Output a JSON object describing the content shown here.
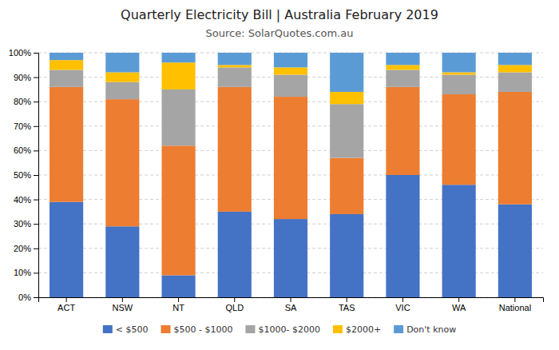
{
  "chart_data": {
    "type": "bar",
    "stacked": true,
    "title": "Quarterly Electricity Bill | Australia February 2019",
    "subtitle": "Source: SolarQuotes.com.au",
    "categories": [
      "ACT",
      "NSW",
      "NT",
      "QLD",
      "SA",
      "TAS",
      "VIC",
      "WA",
      "National"
    ],
    "series": [
      {
        "name": "< $500",
        "color": "#4472C4",
        "values": [
          39,
          29,
          9,
          35,
          32,
          34,
          50,
          46,
          38
        ]
      },
      {
        "name": "$500 - $1000",
        "color": "#ED7D31",
        "values": [
          47,
          52,
          53,
          51,
          50,
          23,
          36,
          37,
          46
        ]
      },
      {
        "name": "$1000- $2000",
        "color": "#A5A5A5",
        "values": [
          7,
          7,
          23,
          8,
          9,
          22,
          7,
          8,
          8
        ]
      },
      {
        "name": "$2000+",
        "color": "#FFC000",
        "values": [
          4,
          4,
          11,
          1,
          3,
          5,
          2,
          1,
          3
        ]
      },
      {
        "name": "Don't know",
        "color": "#5B9BD5",
        "values": [
          3,
          8,
          4,
          5,
          6,
          16,
          5,
          8,
          5
        ]
      }
    ],
    "ylim": [
      0,
      100
    ],
    "yticks": [
      {
        "value": 0,
        "label": "0%"
      },
      {
        "value": 10,
        "label": "10%"
      },
      {
        "value": 20,
        "label": "20%"
      },
      {
        "value": 30,
        "label": "30%"
      },
      {
        "value": 40,
        "label": "40%"
      },
      {
        "value": 50,
        "label": "50%"
      },
      {
        "value": 60,
        "label": "60%"
      },
      {
        "value": 70,
        "label": "70%"
      },
      {
        "value": 80,
        "label": "80%"
      },
      {
        "value": 90,
        "label": "90%"
      },
      {
        "value": 100,
        "label": "100%"
      }
    ],
    "grid": true,
    "legend": "bottom"
  }
}
